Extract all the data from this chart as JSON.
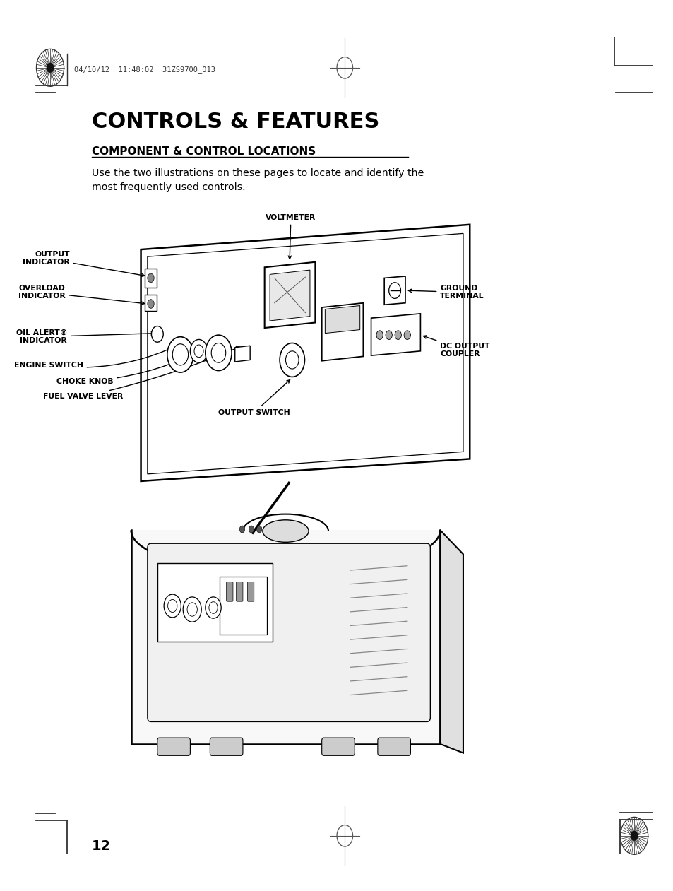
{
  "page_title": "CONTROLS & FEATURES",
  "section_title": "COMPONENT & CONTROL LOCATIONS",
  "body_text": "Use the two illustrations on these pages to locate and identify the\nmost frequently used controls.",
  "header_stamp_text": "04/10/12  11:48:02  31ZS9700_013",
  "page_number": "12",
  "bg_color": "#ffffff",
  "text_color": "#000000"
}
